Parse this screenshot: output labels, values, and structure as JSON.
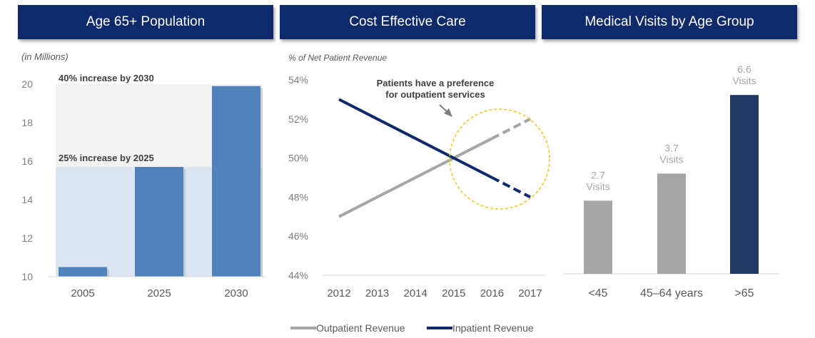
{
  "colors": {
    "header_bg": "#0f2a6b",
    "bar_blue": "#4f81bd",
    "light_gray": "#a6a6a6",
    "navy": "#0f2a6b",
    "dark_navy": "#1f3864",
    "highlight_circle": "#f2c318"
  },
  "chart_data": [
    {
      "type": "bar",
      "header": "Age 65+ Population",
      "unit_label": "(in Millions)",
      "categories": [
        "2005",
        "2025",
        "2030"
      ],
      "values": [
        10.5,
        15.7,
        19.9
      ],
      "ylim": [
        10,
        20
      ],
      "yticks": [
        10,
        12,
        14,
        16,
        18,
        20
      ],
      "annotations": [
        {
          "text": "40% increase by 2030",
          "level": 20
        },
        {
          "text": "25% increase by 2025",
          "level": 15.7
        }
      ]
    },
    {
      "type": "line",
      "header": "Cost Effective Care",
      "unit_label": "% of Net Patient Revenue",
      "x": [
        "2012",
        "2013",
        "2014",
        "2015",
        "2016",
        "2017"
      ],
      "ylim": [
        44,
        54
      ],
      "yticks": [
        "44%",
        "46%",
        "48%",
        "50%",
        "52%",
        "54%"
      ],
      "series": [
        {
          "name": "Outpatient Revenue",
          "values": [
            47,
            48,
            49,
            50,
            51,
            52
          ]
        },
        {
          "name": "Inpatient Revenue",
          "values": [
            53,
            52,
            51,
            50,
            49,
            48
          ]
        }
      ],
      "annotation": "Patients have a preference\nfor outpatient services",
      "legend": [
        "Outpatient Revenue",
        "Inpatient Revenue"
      ]
    },
    {
      "type": "bar",
      "header": "Medical Visits by Age Group",
      "categories": [
        "<45",
        "45–64 years",
        ">65"
      ],
      "values": [
        2.7,
        3.7,
        6.6
      ],
      "data_labels": [
        "2.7",
        "3.7",
        "6.6"
      ],
      "data_label_unit": "Visits"
    }
  ]
}
